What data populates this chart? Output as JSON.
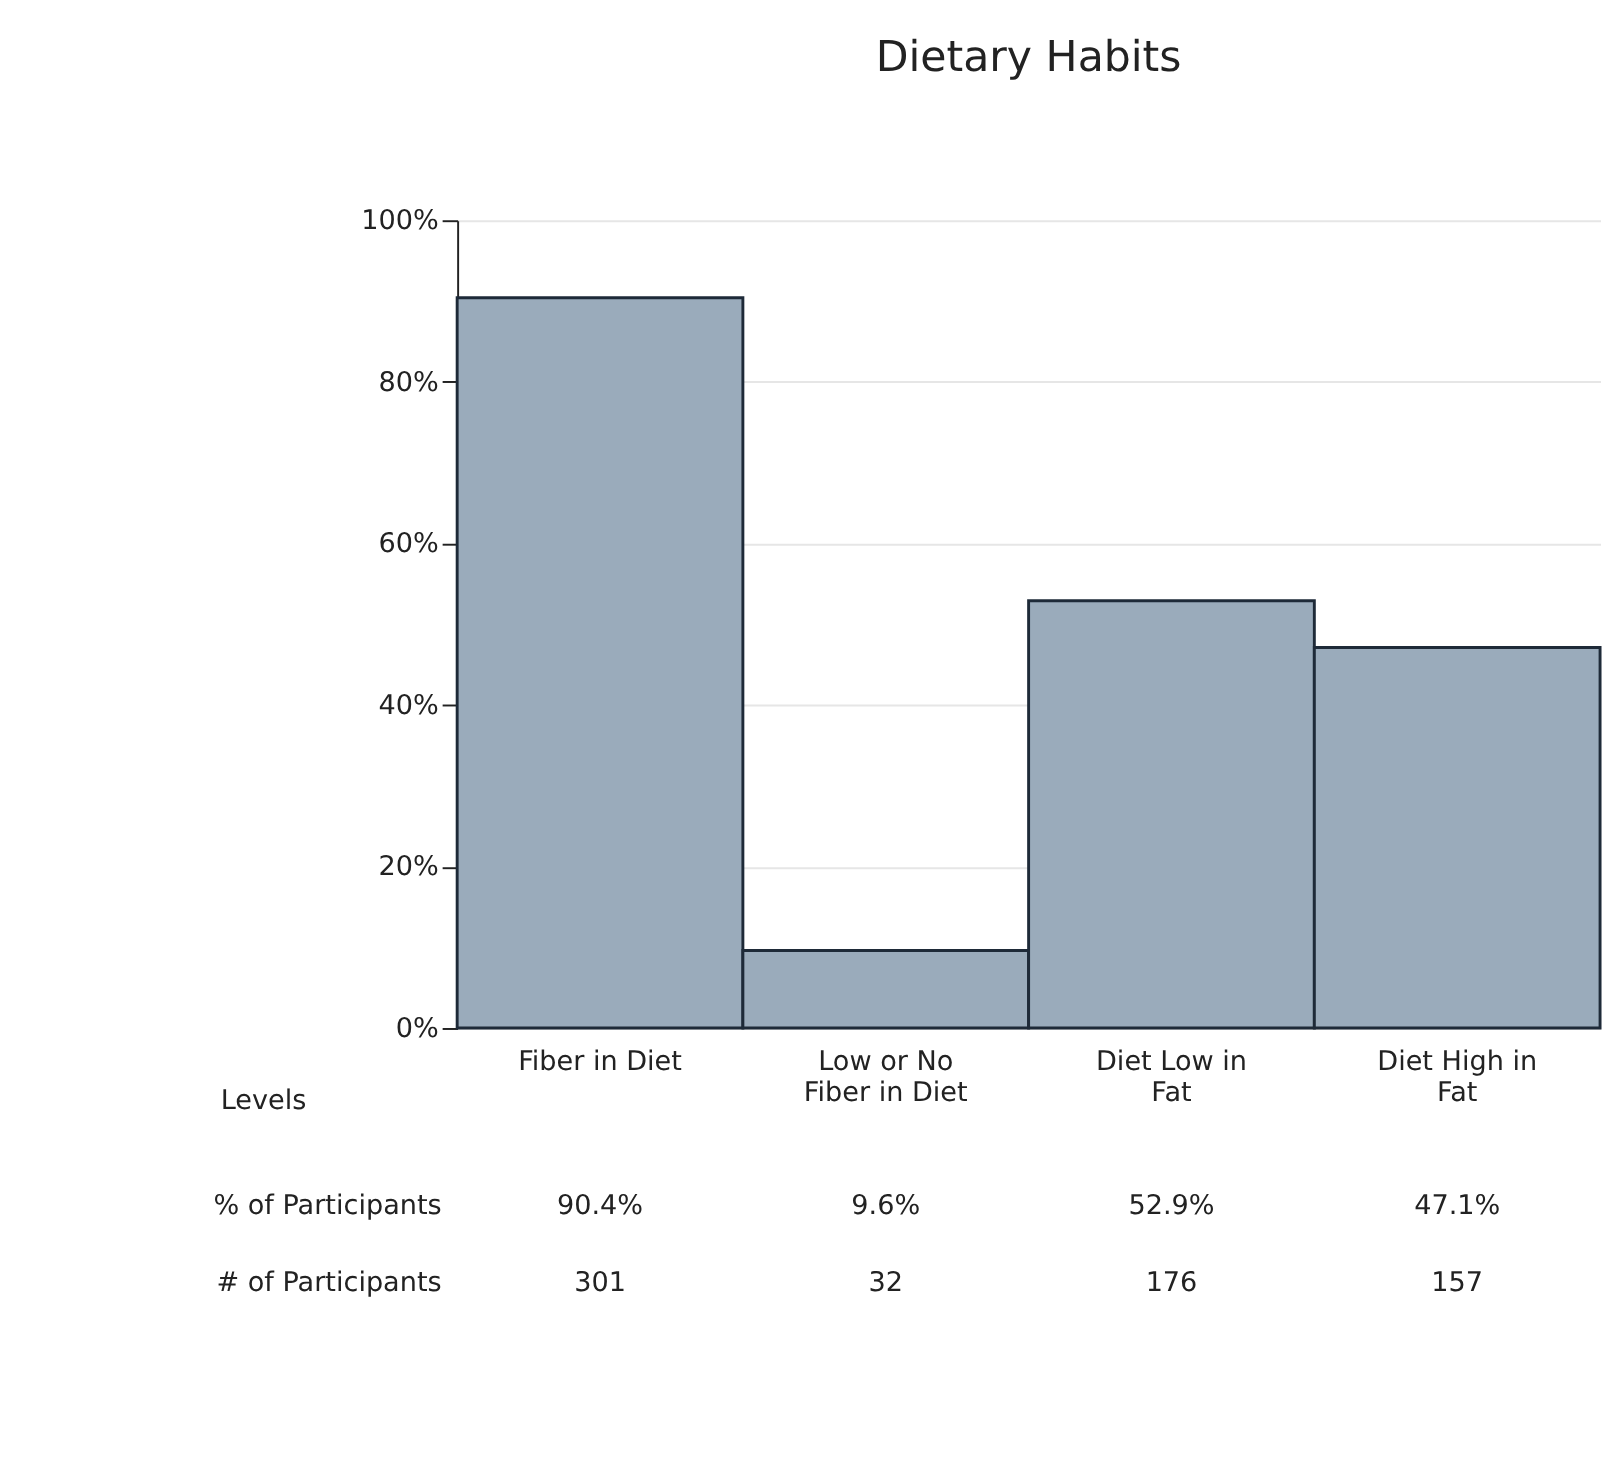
{
  "chart_data": {
    "type": "bar",
    "title": "Dietary Habits",
    "categories": [
      "Fiber in Diet",
      "Low or No Fiber in Diet",
      "Diet Low in Fat",
      "Diet High in Fat"
    ],
    "values": [
      90.4,
      9.6,
      52.9,
      47.1
    ],
    "color": "#9aabbb",
    "value_labels": [
      "90.4%",
      "9.6%",
      "52.9%",
      "47.1%"
    ],
    "ylim": [
      0,
      100
    ],
    "yticks": [
      {
        "value": 0,
        "label": "0%"
      },
      {
        "value": 20,
        "label": "20%"
      },
      {
        "value": 40,
        "label": "40%"
      },
      {
        "value": 60,
        "label": "60%"
      },
      {
        "value": 80,
        "label": "80%"
      },
      {
        "value": 100,
        "label": "100%"
      }
    ],
    "grid": "y",
    "annotations": [
      "Levels",
      "% of Participants",
      "# of Participants",
      "301",
      "32",
      "176",
      "157"
    ]
  }
}
